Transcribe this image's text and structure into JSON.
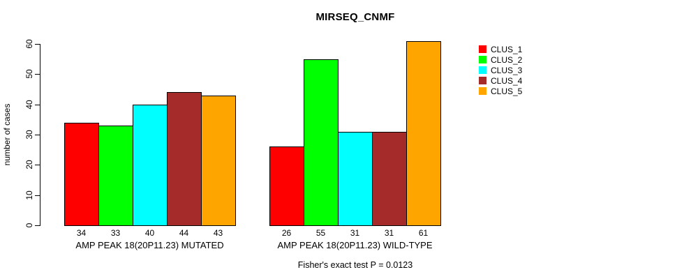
{
  "chart_data": {
    "type": "bar",
    "title": "MIRSEQ_CNMF",
    "ylabel": "number of cases",
    "xlabel": "",
    "ylim": [
      0,
      60
    ],
    "yticks": [
      0,
      10,
      20,
      30,
      40,
      50,
      60
    ],
    "grid": false,
    "legend_position": "top-right-outside",
    "categories": [
      "AMP PEAK 18(20P11.23) MUTATED",
      "AMP PEAK 18(20P11.23) WILD-TYPE"
    ],
    "series": [
      {
        "name": "CLUS_1",
        "color": "#FF0000",
        "values": [
          34,
          26
        ]
      },
      {
        "name": "CLUS_2",
        "color": "#00FF00",
        "values": [
          33,
          55
        ]
      },
      {
        "name": "CLUS_3",
        "color": "#00FFFF",
        "values": [
          40,
          31
        ]
      },
      {
        "name": "CLUS_4",
        "color": "#A52A2A",
        "values": [
          44,
          31
        ]
      },
      {
        "name": "CLUS_5",
        "color": "#FFA500",
        "values": [
          43,
          61
        ]
      }
    ],
    "bar_value_labels": [
      [
        34,
        33,
        40,
        44,
        43
      ],
      [
        26,
        55,
        31,
        31,
        61
      ]
    ],
    "annotation": "Fisher's exact test P = 0.0123"
  },
  "colors": {
    "background": "#FFFFFF",
    "axis": "#000000",
    "text": "#000000"
  }
}
